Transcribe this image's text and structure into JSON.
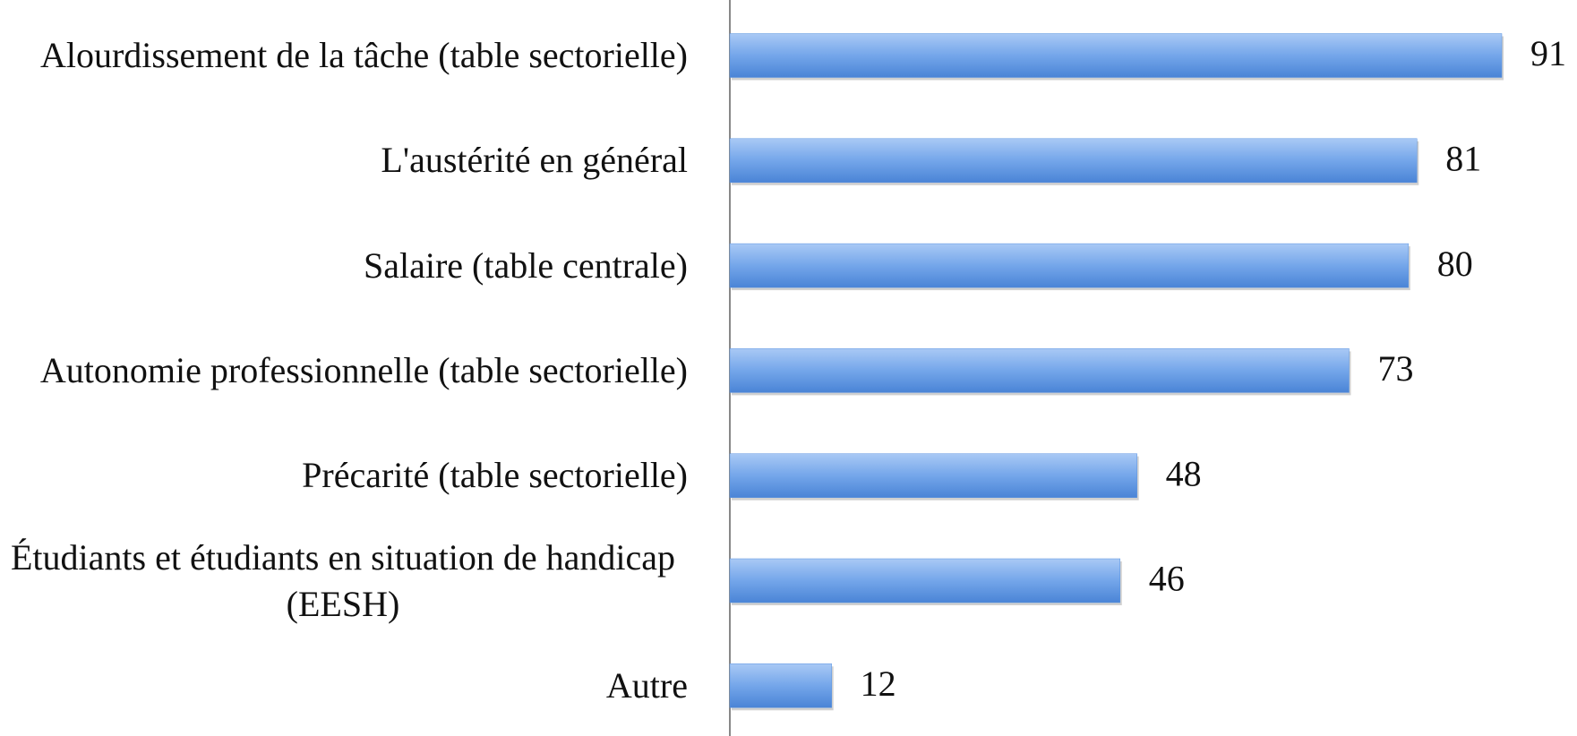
{
  "chart_data": {
    "type": "bar",
    "orientation": "horizontal",
    "categories": [
      "Alourdissement de la tâche (table sectorielle)",
      "L'austérité en général",
      "Salaire (table centrale)",
      "Autonomie professionnelle (table sectorielle)",
      "Précarité (table sectorielle)",
      "Étudiants et étudiants en situation de handicap (EESH)",
      "Autre"
    ],
    "values": [
      91,
      81,
      80,
      73,
      48,
      46,
      12
    ],
    "color": "#5a93e0"
  }
}
